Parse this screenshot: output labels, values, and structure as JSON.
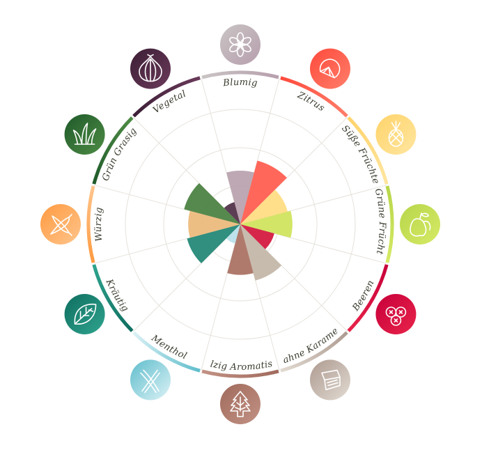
{
  "chart_data": {
    "type": "polar-area",
    "title": "",
    "rmax": 10,
    "grid": true,
    "categories": [
      "Blumig",
      "Zitrus",
      "Süße Früchte",
      "Grüne Früchte",
      "Beeren",
      "Sahne Karamell",
      "Holzig Aromatisch",
      "Menthol",
      "Kräutig",
      "Würzig",
      "Grün Grasig",
      "Vegetal"
    ],
    "values": [
      3.5,
      4.3,
      3.2,
      3.4,
      2.3,
      3.8,
      3.3,
      1.3,
      3.6,
      3.4,
      3.8,
      1.5
    ],
    "colors": [
      "#b7a1ad",
      "#ff5a4c",
      "#ffdc80",
      "#cfe35a",
      "#d3143a",
      "#c2b5a6",
      "#a86f60",
      "#b8e1ea",
      "#1e8574",
      "#ecb87a",
      "#487f3e",
      "#4e2e45"
    ],
    "ring_gradients": [
      [
        "#c9c4c4",
        "#b79fad"
      ],
      [
        "#ff4a3c",
        "#ff7e6a"
      ],
      [
        "#ffd36a",
        "#ffe6a0"
      ],
      [
        "#b7d64a",
        "#d6ea66"
      ],
      [
        "#c7003a",
        "#e8244a"
      ],
      [
        "#ad9a90",
        "#e2dbd2"
      ],
      [
        "#a06a5c",
        "#c29284"
      ],
      [
        "#5fbdcc",
        "#dcf2f6"
      ],
      [
        "#0f6e60",
        "#2fa48e"
      ],
      [
        "#ff9a40",
        "#ffc58c"
      ],
      [
        "#1f5a2a",
        "#4e8c45"
      ],
      [
        "#3c1e36",
        "#6a3a5a"
      ]
    ],
    "icons": [
      "flower-icon",
      "citrus-icon",
      "pineapple-icon",
      "pear-icon",
      "berries-icon",
      "caramel-icon",
      "wood-icon",
      "mint-icon",
      "leaf-icon",
      "pepper-icon",
      "grass-icon",
      "onion-icon"
    ]
  }
}
